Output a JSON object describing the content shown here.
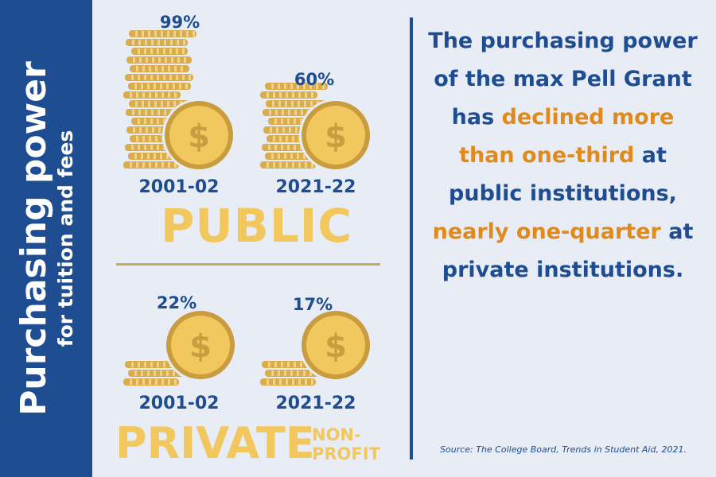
{
  "sidebar": {
    "title": "Purchasing power",
    "subtitle": "for tuition and fees"
  },
  "public": {
    "label": "PUBLIC",
    "items": [
      {
        "year": "2001-02",
        "percent": "99%",
        "value": 99
      },
      {
        "year": "2021-22",
        "percent": "60%",
        "value": 60
      }
    ]
  },
  "private": {
    "label": "PRIVATE",
    "label_suffix_1": "NON-",
    "label_suffix_2": "PROFIT",
    "items": [
      {
        "year": "2001-02",
        "percent": "22%",
        "value": 22
      },
      {
        "year": "2021-22",
        "percent": "17%",
        "value": 17
      }
    ]
  },
  "message": {
    "part1": "The purchasing power of the max Pell Grant has ",
    "highlight1": "declined more than one-third",
    "part2": " at public institutions, ",
    "highlight2": "nearly one-quarter",
    "part3": " at private institutions."
  },
  "source": "Source: The College Board, Trends in Student Aid, 2021.",
  "colors": {
    "navy": "#1e4d92",
    "gold": "#f1c75e",
    "orange": "#e08a1e",
    "background": "#e8ecf4"
  },
  "icons": [
    "coin-icon",
    "dollar-sign-icon"
  ]
}
